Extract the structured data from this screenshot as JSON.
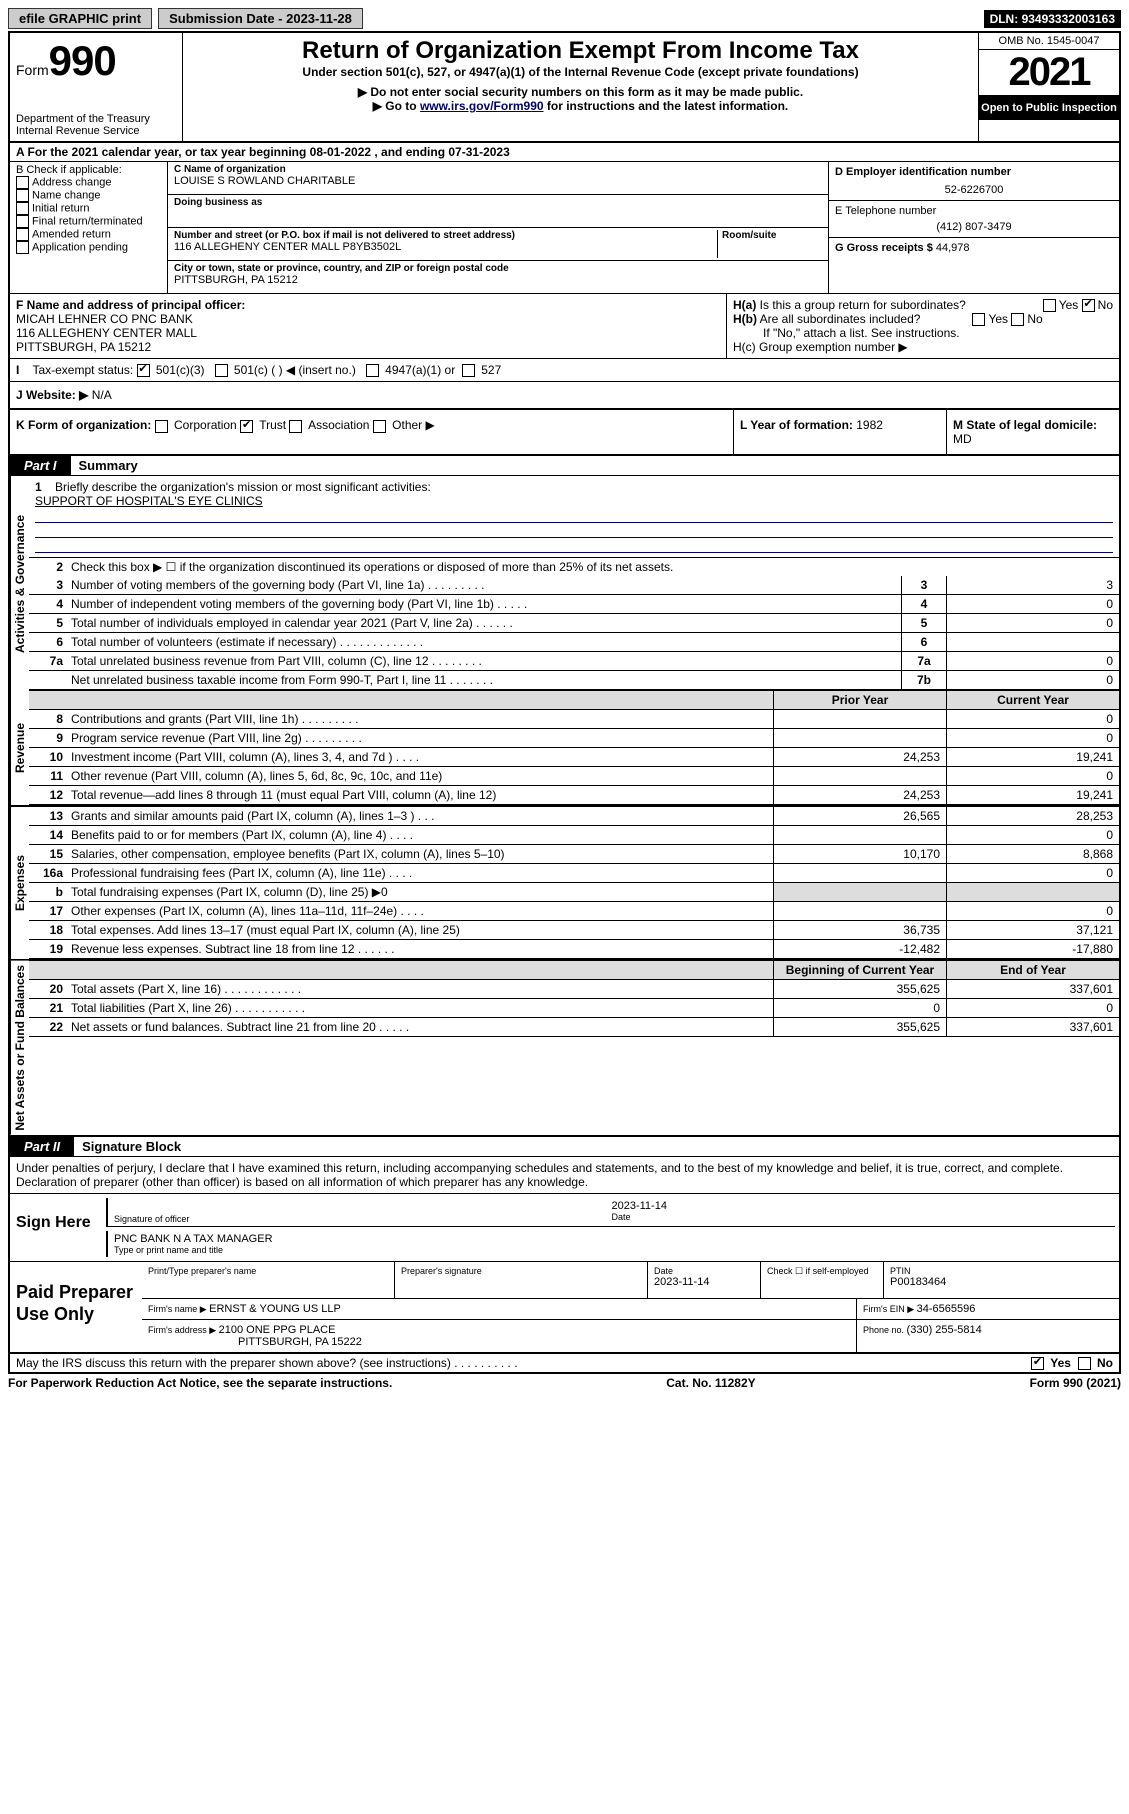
{
  "top": {
    "efile": "efile GRAPHIC print",
    "subdate_lbl": "Submission Date - ",
    "subdate": "2023-11-28",
    "dln_lbl": "DLN: ",
    "dln": "93493332003163"
  },
  "header": {
    "form_prefix": "Form",
    "form_num": "990",
    "dept": "Department of the Treasury",
    "irs": "Internal Revenue Service",
    "title": "Return of Organization Exempt From Income Tax",
    "sub1": "Under section 501(c), 527, or 4947(a)(1) of the Internal Revenue Code (except private foundations)",
    "sub2": "▶ Do not enter social security numbers on this form as it may be made public.",
    "sub3_pre": "▶ Go to ",
    "sub3_link": "www.irs.gov/Form990",
    "sub3_post": " for instructions and the latest information.",
    "omb": "OMB No. 1545-0047",
    "year": "2021",
    "open": "Open to Public Inspection"
  },
  "rowA": {
    "text": "A For the 2021 calendar year, or tax year beginning 08-01-2022    , and ending 07-31-2023"
  },
  "colB": {
    "lbl": "B Check if applicable:",
    "items": [
      "Address change",
      "Name change",
      "Initial return",
      "Final return/terminated",
      "Amended return",
      "Application pending"
    ]
  },
  "colC": {
    "name_lbl": "C Name of organization",
    "name": "LOUISE S ROWLAND CHARITABLE",
    "dba_lbl": "Doing business as",
    "addr_lbl": "Number and street (or P.O. box if mail is not delivered to street address)",
    "room_lbl": "Room/suite",
    "addr": "116 ALLEGHENY CENTER MALL P8YB3502L",
    "city_lbl": "City or town, state or province, country, and ZIP or foreign postal code",
    "city": "PITTSBURGH, PA  15212"
  },
  "colDE": {
    "d_lbl": "D Employer identification number",
    "d_val": "52-6226700",
    "e_lbl": "E Telephone number",
    "e_val": "(412) 807-3479",
    "g_lbl": "G Gross receipts $ ",
    "g_val": "44,978"
  },
  "rowF": {
    "lbl": "F  Name and address of principal officer:",
    "name": "MICAH LEHNER CO PNC BANK",
    "addr1": "116 ALLEGHENY CENTER MALL",
    "addr2": "PITTSBURGH, PA  15212"
  },
  "colH": {
    "ha": "H(a)  Is this a group return for subordinates?",
    "hb": "H(b)  Are all subordinates included?",
    "hb_note": "If \"No,\" attach a list. See instructions.",
    "hc": "H(c)  Group exemption number ▶",
    "yes": "Yes",
    "no": "No"
  },
  "rowI": {
    "lbl": "I     Tax-exempt status:",
    "s1": "501(c)(3)",
    "s2": "501(c) (   ) ◀ (insert no.)",
    "s3": "4947(a)(1) or",
    "s4": "527"
  },
  "rowJ": {
    "lbl": "J    Website: ▶ ",
    "val": "N/A"
  },
  "rowK": {
    "lbl": "K Form of organization:",
    "o1": "Corporation",
    "o2": "Trust",
    "o3": "Association",
    "o4": "Other ▶",
    "l_lbl": "L Year of formation: ",
    "l_val": "1982",
    "m_lbl": "M State of legal domicile:",
    "m_val": "MD"
  },
  "part1": {
    "tab": "Part I",
    "title": "Summary",
    "vtab_gov": "Activities & Governance",
    "vtab_rev": "Revenue",
    "vtab_exp": "Expenses",
    "vtab_net": "Net Assets or Fund Balances",
    "line1_lbl": "Briefly describe the organization's mission or most significant activities:",
    "line1_val": "SUPPORT OF HOSPITAL'S EYE CLINICS",
    "line2": "Check this box ▶ ☐  if the organization discontinued its operations or disposed of more than 25% of its net assets.",
    "rows": [
      {
        "n": "3",
        "t": "Number of voting members of the governing body (Part VI, line 1a)   .    .    .    .    .    .    .    .    .",
        "c": "3",
        "v": "3"
      },
      {
        "n": "4",
        "t": "Number of independent voting members of the governing body (Part VI, line 1b)    .    .    .    .    .",
        "c": "4",
        "v": "0"
      },
      {
        "n": "5",
        "t": "Total number of individuals employed in calendar year 2021 (Part V, line 2a)   .    .    .    .    .    .",
        "c": "5",
        "v": "0"
      },
      {
        "n": "6",
        "t": "Total number of volunteers (estimate if necessary)   .    .    .    .    .    .    .    .    .    .    .    .    .",
        "c": "6",
        "v": ""
      },
      {
        "n": "7a",
        "t": "Total unrelated business revenue from Part VIII, column (C), line 12   .    .    .    .    .    .    .    .",
        "c": "7a",
        "v": "0"
      },
      {
        "n": "",
        "t": "Net unrelated business taxable income from Form 990-T, Part I, line 11   .    .    .    .    .    .    .",
        "c": "7b",
        "v": "0"
      }
    ],
    "col_hdr_prior": "Prior Year",
    "col_hdr_curr": "Current Year",
    "rows2": [
      {
        "n": "8",
        "t": "Contributions and grants (Part VIII, line 1h)    .    .    .    .    .    .    .    .    .",
        "p": "",
        "c": "0"
      },
      {
        "n": "9",
        "t": "Program service revenue (Part VIII, line 2g)    .    .    .    .    .    .    .    .    .",
        "p": "",
        "c": "0"
      },
      {
        "n": "10",
        "t": "Investment income (Part VIII, column (A), lines 3, 4, and 7d )    .    .    .    .",
        "p": "24,253",
        "c": "19,241"
      },
      {
        "n": "11",
        "t": "Other revenue (Part VIII, column (A), lines 5, 6d, 8c, 9c, 10c, and 11e)",
        "p": "",
        "c": "0"
      },
      {
        "n": "12",
        "t": "Total revenue—add lines 8 through 11 (must equal Part VIII, column (A), line 12)",
        "p": "24,253",
        "c": "19,241"
      }
    ],
    "rows3": [
      {
        "n": "13",
        "t": "Grants and similar amounts paid (Part IX, column (A), lines 1–3 )    .    .    .",
        "p": "26,565",
        "c": "28,253"
      },
      {
        "n": "14",
        "t": "Benefits paid to or for members (Part IX, column (A), line 4)   .    .    .    .",
        "p": "",
        "c": "0"
      },
      {
        "n": "15",
        "t": "Salaries, other compensation, employee benefits (Part IX, column (A), lines 5–10)",
        "p": "10,170",
        "c": "8,868"
      },
      {
        "n": "16a",
        "t": "Professional fundraising fees (Part IX, column (A), line 11e)    .    .    .    .",
        "p": "",
        "c": "0"
      },
      {
        "n": "b",
        "t": "Total fundraising expenses (Part IX, column (D), line 25) ▶0",
        "p": "__SHADE__",
        "c": "__SHADE__"
      },
      {
        "n": "17",
        "t": "Other expenses (Part IX, column (A), lines 11a–11d, 11f–24e)   .    .    .    .",
        "p": "",
        "c": "0"
      },
      {
        "n": "18",
        "t": "Total expenses. Add lines 13–17 (must equal Part IX, column (A), line 25)",
        "p": "36,735",
        "c": "37,121"
      },
      {
        "n": "19",
        "t": "Revenue less expenses. Subtract line 18 from line 12    .    .    .    .    .    .",
        "p": "-12,482",
        "c": "-17,880"
      }
    ],
    "col_hdr_beg": "Beginning of Current Year",
    "col_hdr_end": "End of Year",
    "rows4": [
      {
        "n": "20",
        "t": "Total assets (Part X, line 16)   .    .    .    .    .    .    .    .    .    .    .    .",
        "p": "355,625",
        "c": "337,601"
      },
      {
        "n": "21",
        "t": "Total liabilities (Part X, line 26)   .    .    .    .    .    .    .    .    .    .    .",
        "p": "0",
        "c": "0"
      },
      {
        "n": "22",
        "t": "Net assets or fund balances. Subtract line 21 from line 20   .    .    .    .    .",
        "p": "355,625",
        "c": "337,601"
      }
    ]
  },
  "part2": {
    "tab": "Part II",
    "title": "Signature Block",
    "intro": "Under penalties of perjury, I declare that I have examined this return, including accompanying schedules and statements, and to the best of my knowledge and belief, it is true, correct, and complete. Declaration of preparer (other than officer) is based on all information of which preparer has any knowledge.",
    "sign_here": "Sign Here",
    "sig_officer": "Signature of officer",
    "sig_date": "Date",
    "sig_date_val": "2023-11-14",
    "sig_name_title": "PNC BANK N A  TAX MANAGER",
    "sig_name_lbl": "Type or print name and title",
    "paid_lbl": "Paid Preparer Use Only",
    "pp_name_lbl": "Print/Type preparer's name",
    "pp_sig_lbl": "Preparer's signature",
    "pp_date_lbl": "Date",
    "pp_date_val": "2023-11-14",
    "pp_check_lbl": "Check ☐ if self-employed",
    "pp_ptin_lbl": "PTIN",
    "pp_ptin_val": "P00183464",
    "firm_name_lbl": "Firm's name      ▶ ",
    "firm_name": "ERNST & YOUNG US LLP",
    "firm_ein_lbl": "Firm's EIN ▶ ",
    "firm_ein": "34-6565596",
    "firm_addr_lbl": "Firm's address ▶ ",
    "firm_addr1": "2100 ONE PPG PLACE",
    "firm_addr2": "PITTSBURGH, PA  15222",
    "firm_phone_lbl": "Phone no. ",
    "firm_phone": "(330) 255-5814"
  },
  "footer": {
    "discuss": "May the IRS discuss this return with the preparer shown above? (see instructions)    .    .    .    .    .    .    .    .    .    .",
    "yes": "Yes",
    "no": "No",
    "paperwork": "For Paperwork Reduction Act Notice, see the separate instructions.",
    "cat": "Cat. No. 11282Y",
    "form": "Form 990 (2021)"
  }
}
